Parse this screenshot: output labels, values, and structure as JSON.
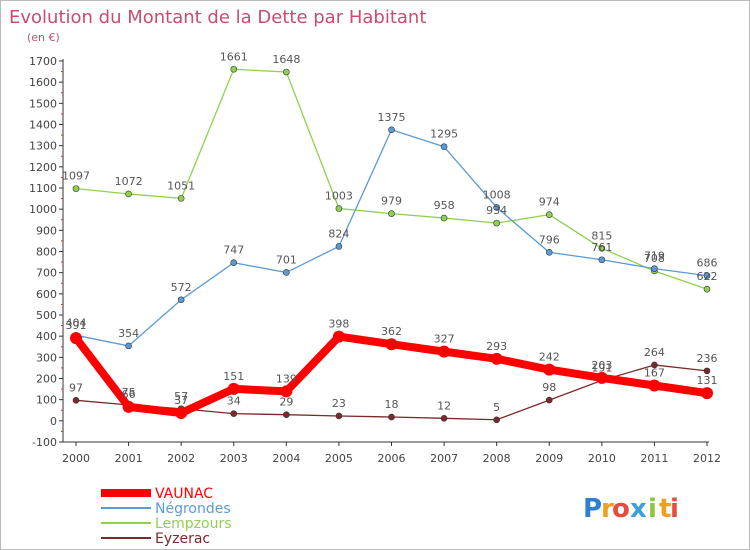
{
  "chart_data": {
    "type": "line",
    "title": "Evolution du Montant de la Dette par Habitant",
    "subtitle": "(en €)",
    "x": [
      "2000",
      "2001",
      "2002",
      "2003",
      "2004",
      "2005",
      "2006",
      "2007",
      "2008",
      "2009",
      "2010",
      "2011",
      "2012"
    ],
    "ylim": [
      -100,
      1700
    ],
    "yticks": [
      "-100",
      "0",
      "100",
      "200",
      "300",
      "400",
      "500",
      "600",
      "700",
      "800",
      "900",
      "1000",
      "1100",
      "1200",
      "1300",
      "1400",
      "1500",
      "1600",
      "1700"
    ],
    "grid": false,
    "legend_position": "bottom-left",
    "series": [
      {
        "name": "VAUNAC",
        "color": "#ff0000",
        "values": [
          391,
          66,
          37,
          151,
          139,
          398,
          362,
          327,
          293,
          242,
          203,
          167,
          131
        ]
      },
      {
        "name": "Négrondes",
        "color": "#5b9bd5",
        "values": [
          404,
          354,
          572,
          747,
          701,
          824,
          1375,
          1295,
          1008,
          796,
          761,
          719,
          686
        ]
      },
      {
        "name": "Lempzours",
        "color": "#8fd14f",
        "values": [
          1097,
          1072,
          1051,
          1661,
          1648,
          1003,
          979,
          958,
          934,
          974,
          815,
          708,
          622
        ]
      },
      {
        "name": "Eyzerac",
        "color": "#7a2a2a",
        "values": [
          97,
          75,
          57,
          34,
          29,
          23,
          18,
          12,
          5,
          98,
          191,
          264,
          236
        ]
      }
    ]
  },
  "logo": {
    "text": "Proxiti",
    "letters": [
      "P",
      "r",
      "o",
      "x",
      "i",
      "t",
      "i"
    ],
    "colors": [
      "#2d7fd1",
      "#f0a020",
      "#e94b3c",
      "#3aa0e0",
      "#8cc63f",
      "#f0a020",
      "#e94b3c"
    ]
  }
}
